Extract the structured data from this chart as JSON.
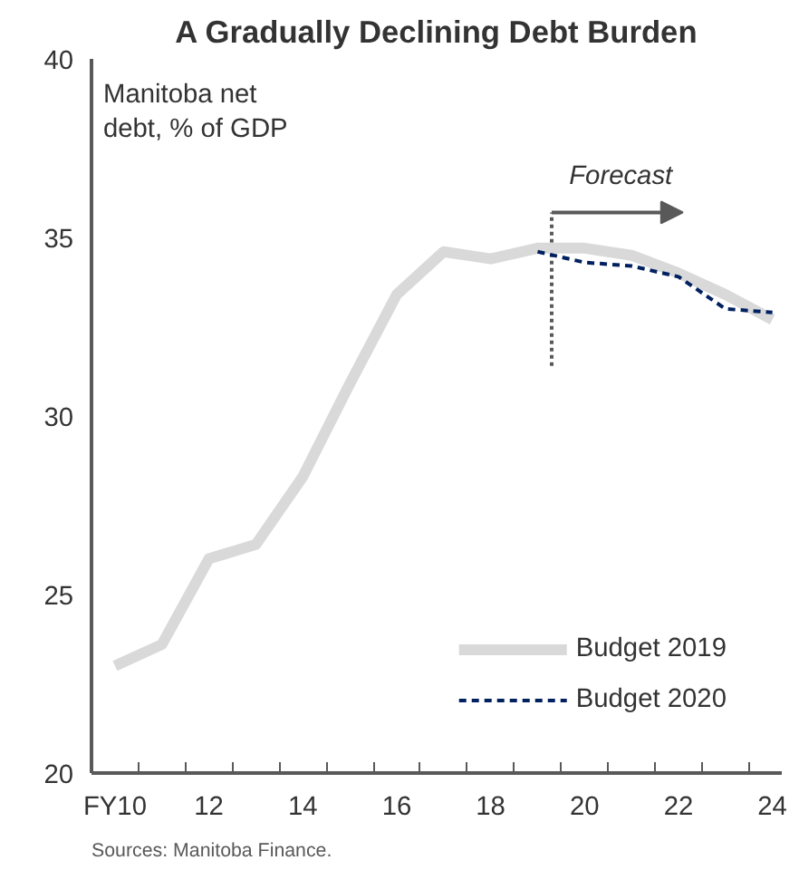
{
  "chart_data": {
    "type": "line",
    "title": "A Gradually Declining Debt Burden",
    "ylabel": "Manitoba net debt, % of GDP",
    "x": [
      10,
      11,
      12,
      13,
      14,
      15,
      16,
      17,
      18,
      19,
      20,
      21,
      22,
      23,
      24
    ],
    "series": [
      {
        "name": "Budget 2019",
        "color": "#d9d9d9",
        "line_style": "solid",
        "values": [
          23.0,
          23.6,
          26.0,
          26.4,
          28.3,
          30.9,
          33.4,
          34.6,
          34.4,
          34.7,
          34.7,
          34.5,
          34.0,
          33.4,
          32.7
        ]
      },
      {
        "name": "Budget 2020",
        "color": "#002060",
        "line_style": "dashed",
        "values": [
          null,
          null,
          null,
          null,
          null,
          null,
          null,
          null,
          null,
          34.6,
          34.3,
          34.2,
          33.9,
          33.0,
          32.9
        ]
      }
    ],
    "xlim": [
      9.5,
      24.2
    ],
    "xticks": [
      {
        "value": 10,
        "label": "FY10"
      },
      {
        "value": 12,
        "label": "12"
      },
      {
        "value": 14,
        "label": "14"
      },
      {
        "value": 16,
        "label": "16"
      },
      {
        "value": 18,
        "label": "18"
      },
      {
        "value": 20,
        "label": "20"
      },
      {
        "value": 22,
        "label": "22"
      },
      {
        "value": 24,
        "label": "24"
      }
    ],
    "ylim": [
      20,
      40
    ],
    "yticks": [
      20,
      25,
      30,
      35,
      40
    ],
    "ref_lines": [
      {
        "axis": "x",
        "value": 19.3,
        "label": "Forecast",
        "color": "#595959",
        "line_style": "dotted"
      }
    ],
    "legend": "bottom right",
    "grid": false,
    "marker": "none",
    "annotations": [
      "Sources: Manitoba Finance."
    ]
  }
}
